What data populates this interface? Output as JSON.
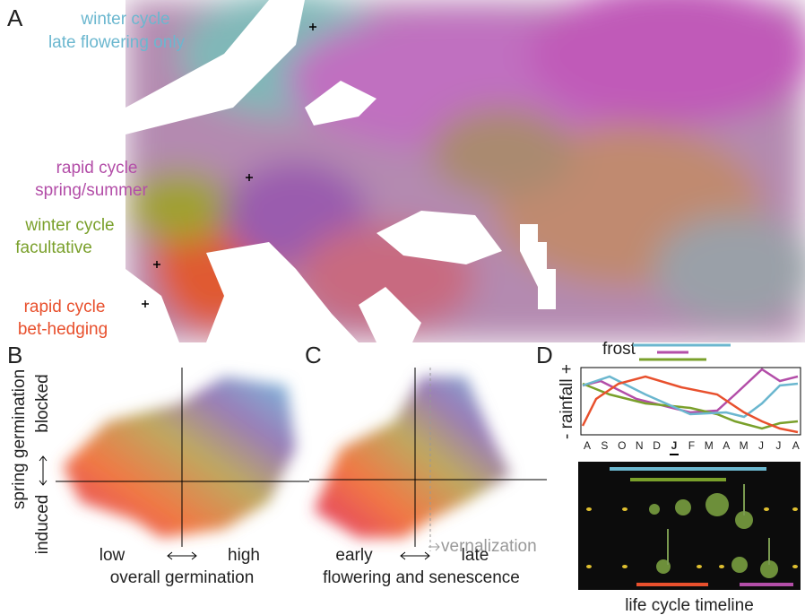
{
  "panel_a": {
    "label": "A",
    "legend": [
      {
        "lines": [
          "winter cycle",
          "late flowering only"
        ]
      },
      {
        "lines": [
          "rapid cycle",
          "spring/summer"
        ]
      },
      {
        "lines": [
          "winter cycle",
          "facultative"
        ]
      },
      {
        "lines": [
          "rapid cycle",
          "bet-hedging"
        ]
      }
    ]
  },
  "panel_b": {
    "label": "B",
    "y_title": "spring germination",
    "y_high": "blocked",
    "y_low": "induced",
    "x_low": "low",
    "x_high": "high",
    "x_title": "overall germination"
  },
  "panel_c": {
    "label": "C",
    "x_low": "early",
    "x_high": "late",
    "x_title": "flowering and senescence",
    "threshold": "vernalization"
  },
  "panel_d": {
    "label": "D",
    "frost": "frost",
    "rainfall": "- rainfall +",
    "months": [
      "A",
      "S",
      "O",
      "N",
      "D",
      "J",
      "F",
      "M",
      "A",
      "M",
      "J",
      "J",
      "A"
    ],
    "timeline": "life cycle timeline"
  }
}
